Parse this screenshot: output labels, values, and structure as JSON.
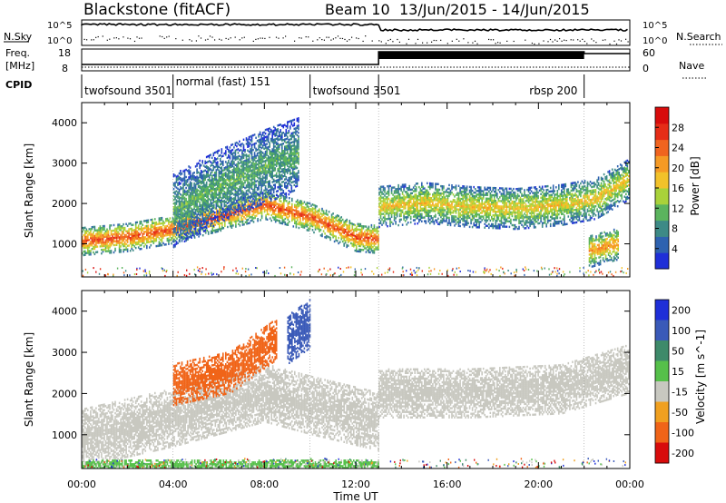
{
  "header": {
    "site": "Blackstone (fitACF)",
    "beam": "Beam 10",
    "date_range": "13/Jun/2015 - 14/Jun/2015"
  },
  "params": {
    "nsky_label": "N.Sky",
    "nsearch_label": "N.Search",
    "freq_label_1": "Freq.",
    "freq_label_2": "[MHz]",
    "nave_label": "Nave",
    "cpid_label": "CPID",
    "left_ticks_top": [
      "10^5",
      "10^0"
    ],
    "right_ticks_top": [
      "10^5",
      "10^0"
    ],
    "freq_ticks": [
      "18",
      "8"
    ],
    "nave_ticks": [
      "60",
      "0"
    ],
    "cpid_segments": [
      {
        "label": "twofsound 3501",
        "start": 0,
        "end": 4
      },
      {
        "label": "normal (fast) 151",
        "start": 4,
        "end": 10
      },
      {
        "label": "twofsound 3501",
        "start": 10,
        "end": 13
      },
      {
        "label": "rbsp 200",
        "start": 13,
        "end": 22
      }
    ]
  },
  "chart_data": [
    {
      "type": "heatmap",
      "title": "Power",
      "ylabel": "Slant Range [km]",
      "xlim": [
        0,
        24
      ],
      "ylim": [
        180,
        4500
      ],
      "yticks": [
        "1000",
        "2000",
        "3000",
        "4000"
      ],
      "colorbar_label": "Power [dB]",
      "colorbar_ticks": [
        "4",
        "8",
        "12",
        "16",
        "20",
        "24",
        "28"
      ],
      "colorbar_range": [
        0,
        32
      ],
      "colors": [
        "#1f2fd8",
        "#2e62b0",
        "#3d8a86",
        "#5bb45e",
        "#a9d23a",
        "#f2c22a",
        "#f59a25",
        "#f0641f",
        "#e62d17",
        "#d80c0c"
      ],
      "echo_bands": [
        {
          "t": [
            0,
            2,
            4,
            6,
            8,
            10,
            12,
            13
          ],
          "center_km": [
            1050,
            1150,
            1350,
            1650,
            1950,
            1650,
            1150,
            1100
          ],
          "width_km": 350,
          "power_db": 26
        },
        {
          "t": [
            4,
            6,
            8,
            9.5
          ],
          "center_km": [
            1800,
            2400,
            2900,
            3200
          ],
          "width_km": 900,
          "power_db": 11
        },
        {
          "t": [
            13,
            15,
            17,
            19,
            21,
            22.5,
            24
          ],
          "center_km": [
            1900,
            2000,
            1900,
            1850,
            1950,
            2100,
            2600
          ],
          "width_km": 500,
          "power_db": 18
        },
        {
          "t": [
            22.2,
            23.5
          ],
          "center_km": [
            800,
            1000
          ],
          "width_km": 400,
          "power_db": 22
        }
      ]
    },
    {
      "type": "heatmap",
      "title": "Velocity",
      "xlabel": "Time UT",
      "ylabel": "Slant Range [km]",
      "xlim": [
        0,
        24
      ],
      "ylim": [
        180,
        4500
      ],
      "xticks": [
        "00:00",
        "04:00",
        "08:00",
        "12:00",
        "16:00",
        "20:00",
        "00:00"
      ],
      "yticks": [
        "1000",
        "2000",
        "3000",
        "4000"
      ],
      "colorbar_label": "Velocity [m s^-1]",
      "colorbar_ticks": [
        "200",
        "100",
        "50",
        "15",
        "-15",
        "-50",
        "-100",
        "-200"
      ],
      "colors": [
        "#1f2fd8",
        "#3a5ab8",
        "#3e8a6a",
        "#56c04a",
        "#c8c8c0",
        "#f0a020",
        "#f06418",
        "#d80c0c"
      ],
      "echo_bands": [
        {
          "t": [
            0,
            4,
            8,
            10,
            13
          ],
          "center_km": [
            900,
            1400,
            2000,
            1700,
            1300
          ],
          "width_km": 700,
          "velocity": 0
        },
        {
          "t": [
            4,
            6.5,
            8.5
          ],
          "center_km": [
            2200,
            2500,
            3300
          ],
          "width_km": 500,
          "velocity": -80
        },
        {
          "t": [
            9,
            10
          ],
          "center_km": [
            3300,
            3700
          ],
          "width_km": 600,
          "velocity": 120
        },
        {
          "t": [
            13,
            17,
            21,
            24
          ],
          "center_km": [
            2000,
            2000,
            2100,
            2600
          ],
          "width_km": 600,
          "velocity": 0
        },
        {
          "t": [
            0,
            13
          ],
          "center_km": [
            250,
            250
          ],
          "width_km": 120,
          "velocity": 30
        }
      ]
    }
  ]
}
